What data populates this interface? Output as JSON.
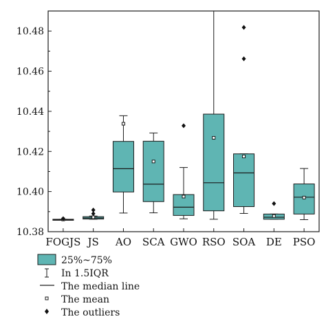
{
  "chart_data": {
    "type": "box",
    "title": "",
    "xlabel": "",
    "ylabel": "",
    "ylim": [
      10.38,
      10.49
    ],
    "yticks": [
      10.38,
      10.4,
      10.42,
      10.44,
      10.46,
      10.48
    ],
    "ytick_labels": [
      "10.38",
      "10.40",
      "10.42",
      "10.44",
      "10.46",
      "10.48"
    ],
    "grid": false,
    "box_color": "#5fb5b3",
    "categories": [
      "FOGJS",
      "JS",
      "AO",
      "SCA",
      "GWO",
      "RSO",
      "SOA",
      "DE",
      "PSO"
    ],
    "boxes": [
      {
        "q1": 10.3859,
        "median": 10.386,
        "q3": 10.3862,
        "whisker_low": 10.3859,
        "whisker_high": 10.3862,
        "mean": 10.3861,
        "outliers": [
          10.3865
        ]
      },
      {
        "q1": 10.3863,
        "median": 10.3868,
        "q3": 10.3875,
        "whisker_low": 10.3862,
        "whisker_high": 10.3878,
        "mean": 10.3872,
        "outliers": [
          10.389,
          10.3908
        ]
      },
      {
        "q1": 10.3998,
        "median": 10.4114,
        "q3": 10.425,
        "whisker_low": 10.3893,
        "whisker_high": 10.4378,
        "mean": 10.4338,
        "outliers": []
      },
      {
        "q1": 10.395,
        "median": 10.4037,
        "q3": 10.4251,
        "whisker_low": 10.3894,
        "whisker_high": 10.4292,
        "mean": 10.415,
        "outliers": []
      },
      {
        "q1": 10.3881,
        "median": 10.3922,
        "q3": 10.3985,
        "whisker_low": 10.3864,
        "whisker_high": 10.412,
        "mean": 10.3975,
        "outliers": [
          10.4328
        ]
      },
      {
        "q1": 10.3904,
        "median": 10.4044,
        "q3": 10.4386,
        "whisker_low": 10.3862,
        "whisker_high": 10.495,
        "mean": 10.4268,
        "outliers": []
      },
      {
        "q1": 10.3925,
        "median": 10.4093,
        "q3": 10.4188,
        "whisker_low": 10.3891,
        "whisker_high": 10.4188,
        "mean": 10.4175,
        "outliers": [
          10.4818,
          10.4662
        ]
      },
      {
        "q1": 10.3862,
        "median": 10.3872,
        "q3": 10.3888,
        "whisker_low": 10.3862,
        "whisker_high": 10.3888,
        "mean": 10.3878,
        "outliers": [
          10.394
        ]
      },
      {
        "q1": 10.3888,
        "median": 10.3972,
        "q3": 10.4038,
        "whisker_low": 10.386,
        "whisker_high": 10.4115,
        "mean": 10.397,
        "outliers": []
      }
    ]
  },
  "legend": {
    "box_label": "25%~75%",
    "whisker_label": "In 1.5IQR",
    "median_label": "The median line",
    "mean_label": "The mean",
    "outlier_label": "The outliers"
  }
}
